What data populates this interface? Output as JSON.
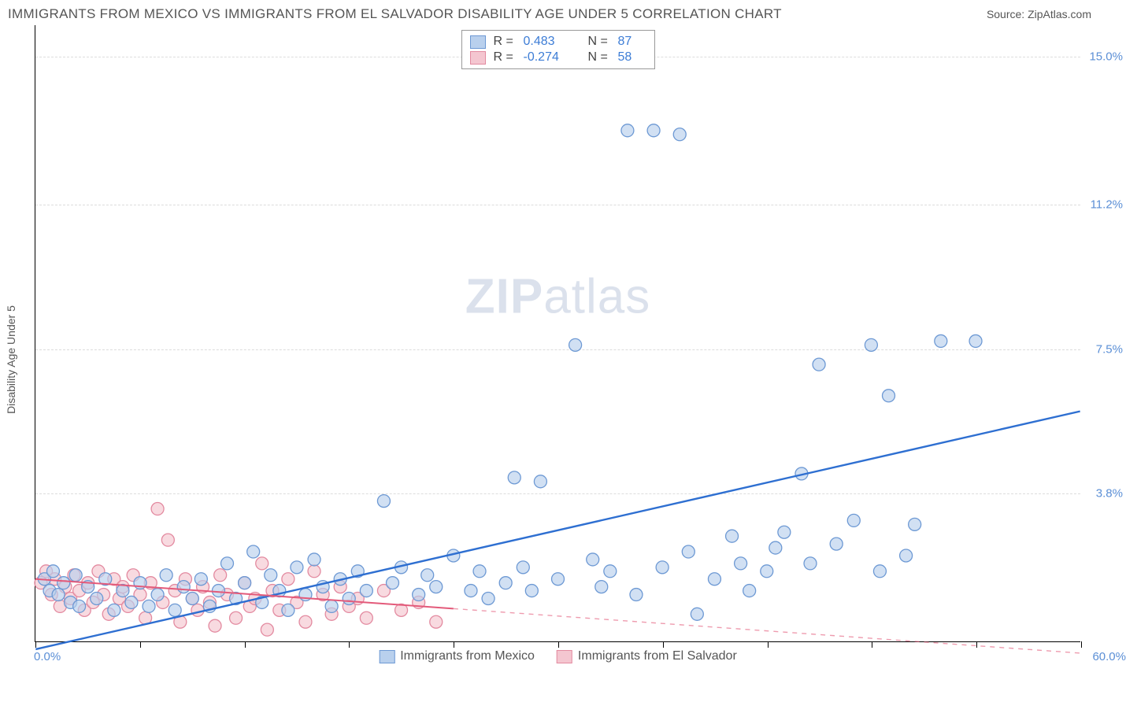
{
  "header": {
    "title": "IMMIGRANTS FROM MEXICO VS IMMIGRANTS FROM EL SALVADOR DISABILITY AGE UNDER 5 CORRELATION CHART",
    "source": "Source: ZipAtlas.com"
  },
  "chart": {
    "type": "scatter",
    "ylabel": "Disability Age Under 5",
    "watermark_zip": "ZIP",
    "watermark_atlas": "atlas",
    "xlim": [
      0,
      60
    ],
    "ylim": [
      0,
      15.8
    ],
    "xaxis_min_label": "0.0%",
    "xaxis_max_label": "60.0%",
    "xtick_positions": [
      0,
      6,
      12,
      18,
      24,
      30,
      36,
      42,
      48,
      54,
      60
    ],
    "yticks": [
      {
        "v": 3.8,
        "label": "3.8%"
      },
      {
        "v": 7.5,
        "label": "7.5%"
      },
      {
        "v": 11.2,
        "label": "11.2%"
      },
      {
        "v": 15.0,
        "label": "15.0%"
      }
    ],
    "grid_color": "#dcdcdc",
    "background_color": "#ffffff",
    "marker_radius": 8,
    "marker_stroke_width": 1.3,
    "series": [
      {
        "name": "Immigrants from Mexico",
        "fill": "#b9d0ed",
        "stroke": "#6d99d4",
        "swatch_fill": "#b9d0ed",
        "swatch_stroke": "#6d99d4",
        "legend_R": "0.483",
        "legend_N": "87",
        "trend": {
          "x1": 0,
          "y1": -0.2,
          "x2": 60,
          "y2": 5.9,
          "solid_to_x": 60,
          "color": "#2e6fd1",
          "width": 2.4
        },
        "points": [
          [
            0.5,
            1.6
          ],
          [
            0.8,
            1.3
          ],
          [
            1.0,
            1.8
          ],
          [
            1.3,
            1.2
          ],
          [
            1.6,
            1.5
          ],
          [
            2.0,
            1.0
          ],
          [
            2.3,
            1.7
          ],
          [
            2.5,
            0.9
          ],
          [
            3.0,
            1.4
          ],
          [
            3.5,
            1.1
          ],
          [
            4.0,
            1.6
          ],
          [
            4.5,
            0.8
          ],
          [
            5.0,
            1.3
          ],
          [
            5.5,
            1.0
          ],
          [
            6.0,
            1.5
          ],
          [
            6.5,
            0.9
          ],
          [
            7.0,
            1.2
          ],
          [
            7.5,
            1.7
          ],
          [
            8.0,
            0.8
          ],
          [
            8.5,
            1.4
          ],
          [
            9.0,
            1.1
          ],
          [
            9.5,
            1.6
          ],
          [
            10.0,
            0.9
          ],
          [
            10.5,
            1.3
          ],
          [
            11.0,
            2.0
          ],
          [
            11.5,
            1.1
          ],
          [
            12.0,
            1.5
          ],
          [
            12.5,
            2.3
          ],
          [
            13.0,
            1.0
          ],
          [
            13.5,
            1.7
          ],
          [
            14.0,
            1.3
          ],
          [
            14.5,
            0.8
          ],
          [
            15.0,
            1.9
          ],
          [
            15.5,
            1.2
          ],
          [
            16.0,
            2.1
          ],
          [
            16.5,
            1.4
          ],
          [
            17.0,
            0.9
          ],
          [
            17.5,
            1.6
          ],
          [
            18.0,
            1.1
          ],
          [
            18.5,
            1.8
          ],
          [
            19.0,
            1.3
          ],
          [
            20.0,
            3.6
          ],
          [
            20.5,
            1.5
          ],
          [
            21.0,
            1.9
          ],
          [
            22.0,
            1.2
          ],
          [
            22.5,
            1.7
          ],
          [
            23.0,
            1.4
          ],
          [
            24.0,
            2.2
          ],
          [
            25.0,
            1.3
          ],
          [
            25.5,
            1.8
          ],
          [
            26.0,
            1.1
          ],
          [
            27.0,
            1.5
          ],
          [
            27.5,
            4.2
          ],
          [
            28.0,
            1.9
          ],
          [
            28.5,
            1.3
          ],
          [
            29.0,
            4.1
          ],
          [
            30.0,
            1.6
          ],
          [
            31.0,
            7.6
          ],
          [
            32.0,
            2.1
          ],
          [
            32.5,
            1.4
          ],
          [
            33.0,
            1.8
          ],
          [
            34.0,
            13.1
          ],
          [
            34.5,
            1.2
          ],
          [
            35.5,
            13.1
          ],
          [
            36.0,
            1.9
          ],
          [
            37.0,
            13.0
          ],
          [
            37.5,
            2.3
          ],
          [
            38.0,
            0.7
          ],
          [
            39.0,
            1.6
          ],
          [
            40.0,
            2.7
          ],
          [
            40.5,
            2.0
          ],
          [
            41.0,
            1.3
          ],
          [
            42.0,
            1.8
          ],
          [
            42.5,
            2.4
          ],
          [
            43.0,
            2.8
          ],
          [
            44.0,
            4.3
          ],
          [
            44.5,
            2.0
          ],
          [
            45.0,
            7.1
          ],
          [
            46.0,
            2.5
          ],
          [
            47.0,
            3.1
          ],
          [
            48.0,
            7.6
          ],
          [
            48.5,
            1.8
          ],
          [
            49.0,
            6.3
          ],
          [
            50.0,
            2.2
          ],
          [
            52.0,
            7.7
          ],
          [
            54.0,
            7.7
          ],
          [
            50.5,
            3.0
          ]
        ]
      },
      {
        "name": "Immigrants from El Salvador",
        "fill": "#f4c6d0",
        "stroke": "#e38aa0",
        "swatch_fill": "#f4c6d0",
        "swatch_stroke": "#e38aa0",
        "legend_R": "-0.274",
        "legend_N": "58",
        "trend": {
          "x1": 0,
          "y1": 1.6,
          "x2": 60,
          "y2": -0.3,
          "solid_to_x": 24,
          "color": "#e35a7a",
          "width": 2.0
        },
        "points": [
          [
            0.3,
            1.5
          ],
          [
            0.6,
            1.8
          ],
          [
            0.9,
            1.2
          ],
          [
            1.1,
            1.6
          ],
          [
            1.4,
            0.9
          ],
          [
            1.7,
            1.4
          ],
          [
            2.0,
            1.1
          ],
          [
            2.2,
            1.7
          ],
          [
            2.5,
            1.3
          ],
          [
            2.8,
            0.8
          ],
          [
            3.0,
            1.5
          ],
          [
            3.3,
            1.0
          ],
          [
            3.6,
            1.8
          ],
          [
            3.9,
            1.2
          ],
          [
            4.2,
            0.7
          ],
          [
            4.5,
            1.6
          ],
          [
            4.8,
            1.1
          ],
          [
            5.0,
            1.4
          ],
          [
            5.3,
            0.9
          ],
          [
            5.6,
            1.7
          ],
          [
            6.0,
            1.2
          ],
          [
            6.3,
            0.6
          ],
          [
            6.6,
            1.5
          ],
          [
            7.0,
            3.4
          ],
          [
            7.3,
            1.0
          ],
          [
            7.6,
            2.6
          ],
          [
            8.0,
            1.3
          ],
          [
            8.3,
            0.5
          ],
          [
            8.6,
            1.6
          ],
          [
            9.0,
            1.1
          ],
          [
            9.3,
            0.8
          ],
          [
            9.6,
            1.4
          ],
          [
            10.0,
            1.0
          ],
          [
            10.3,
            0.4
          ],
          [
            10.6,
            1.7
          ],
          [
            11.0,
            1.2
          ],
          [
            11.5,
            0.6
          ],
          [
            12.0,
            1.5
          ],
          [
            12.3,
            0.9
          ],
          [
            12.6,
            1.1
          ],
          [
            13.0,
            2.0
          ],
          [
            13.3,
            0.3
          ],
          [
            13.6,
            1.3
          ],
          [
            14.0,
            0.8
          ],
          [
            14.5,
            1.6
          ],
          [
            15.0,
            1.0
          ],
          [
            15.5,
            0.5
          ],
          [
            16.0,
            1.8
          ],
          [
            16.5,
            1.2
          ],
          [
            17.0,
            0.7
          ],
          [
            17.5,
            1.4
          ],
          [
            18.0,
            0.9
          ],
          [
            18.5,
            1.1
          ],
          [
            19.0,
            0.6
          ],
          [
            20.0,
            1.3
          ],
          [
            21.0,
            0.8
          ],
          [
            22.0,
            1.0
          ],
          [
            23.0,
            0.5
          ]
        ]
      }
    ],
    "legend_bottom": [
      {
        "label": "Immigrants from Mexico",
        "fill": "#b9d0ed",
        "stroke": "#6d99d4"
      },
      {
        "label": "Immigrants from El Salvador",
        "fill": "#f4c6d0",
        "stroke": "#e38aa0"
      }
    ]
  }
}
